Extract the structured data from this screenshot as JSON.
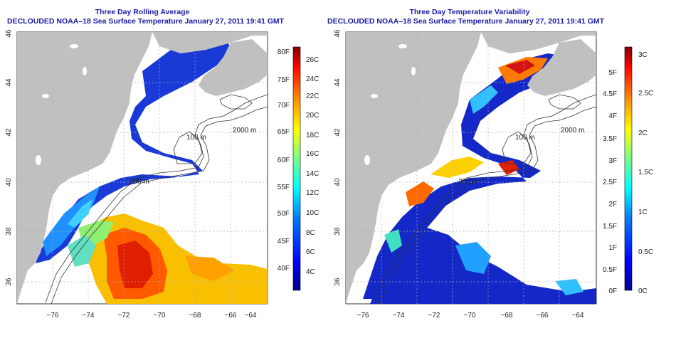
{
  "titles": {
    "left_line1": "Three Day Rolling Average",
    "left_line2": "DECLOUDED NOAA–18 Sea Surface Temperature January 27, 2011 19:41 GMT",
    "right_line1": "Three Day Temperature Variability",
    "right_line2": "DECLOUDED NOAA–18 Sea Surface Temperature January 27, 2011 19:41 GMT"
  },
  "axes": {
    "x_ticks": [
      "−76",
      "−74",
      "−72",
      "−70",
      "−68",
      "−66",
      "−64"
    ],
    "y_ticks": [
      "36",
      "38",
      "40",
      "42",
      "44",
      "46"
    ]
  },
  "contour_labels": {
    "label_100": "100 m",
    "label_200": "200 m",
    "label_2000": "2000 m"
  },
  "colorbars": {
    "left_fahrenheit": [
      "80F",
      "75F",
      "70F",
      "65F",
      "60F",
      "55F",
      "50F",
      "45F",
      "40F"
    ],
    "left_celsius": [
      "26C",
      "24C",
      "22C",
      "20C",
      "18C",
      "16C",
      "14C",
      "12C",
      "10C",
      "8C",
      "6C",
      "4C"
    ],
    "right_fahrenheit": [
      "5F",
      "4.5F",
      "4F",
      "3.5F",
      "3F",
      "2.5F",
      "2F",
      "1.5F",
      "1F",
      "0.5F",
      "0F"
    ],
    "right_celsius": [
      "3C",
      "2.5C",
      "2C",
      "1.5C",
      "1C",
      "0.5C",
      "0C"
    ]
  },
  "colors": {
    "land": "#c0c0c0",
    "title": "#1a1aa6",
    "grid": "#b0b0b0",
    "colormap": [
      "#00008f",
      "#0000ff",
      "#0080ff",
      "#00ffff",
      "#80ff80",
      "#ffff00",
      "#ff8000",
      "#ff0000",
      "#800000"
    ]
  }
}
